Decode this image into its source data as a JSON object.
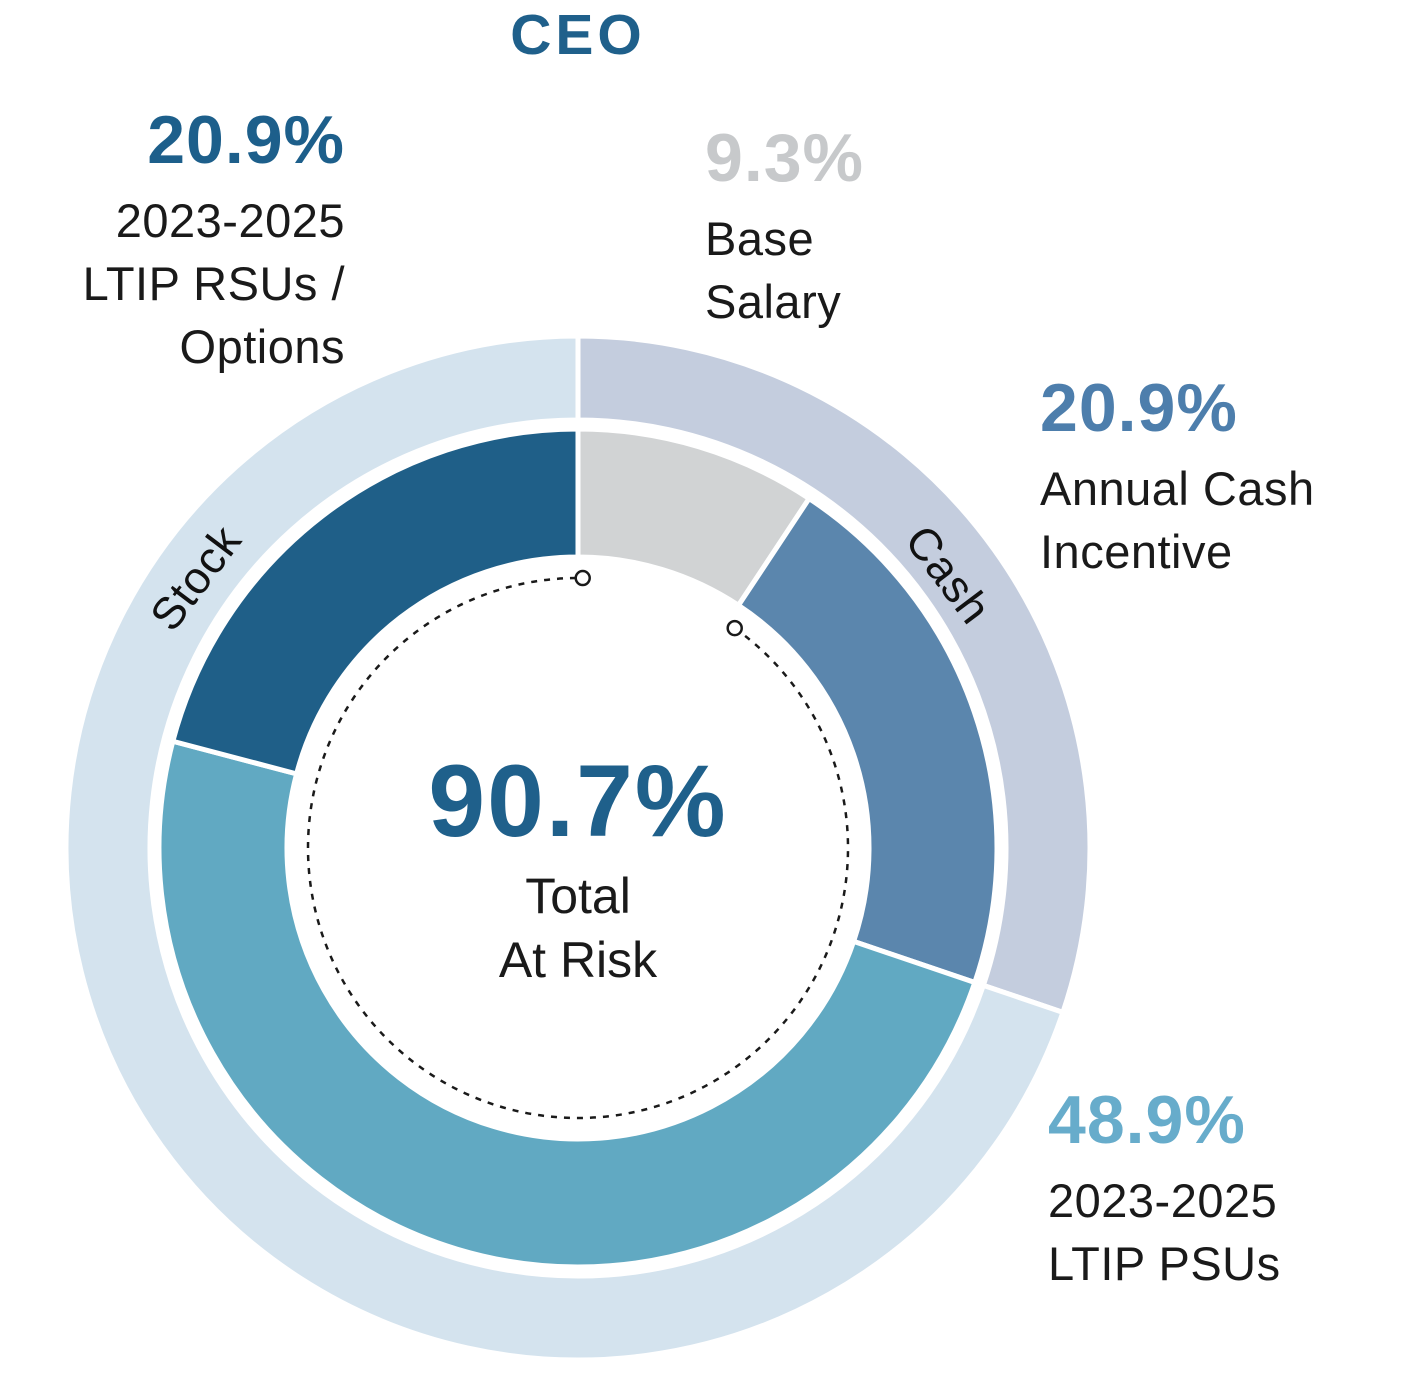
{
  "colors": {
    "primary_blue": "#1f608b",
    "text_black": "#1a1a1a"
  },
  "chart_data": {
    "type": "pie",
    "subtype": "double-ring-donut",
    "title": "CEO",
    "units": "percent",
    "legend_position": "none",
    "inner_ring": [
      {
        "label": "Base Salary",
        "value": 9.3,
        "color": "#d1d3d4"
      },
      {
        "label": "Annual Cash Incentive",
        "value": 20.9,
        "color": "#5b86ad"
      },
      {
        "label": "2023-2025 LTIP PSUs",
        "value": 48.9,
        "color": "#61a9c2"
      },
      {
        "label": "2023-2025 LTIP RSUs / Options",
        "value": 20.9,
        "color": "#1f5f88"
      }
    ],
    "outer_ring": [
      {
        "label": "Cash",
        "value": 30.2,
        "color": "#c4cdde"
      },
      {
        "label": "Stock",
        "value": 69.8,
        "color": "#d4e3ee"
      }
    ],
    "center": {
      "value": "90.7%",
      "label_lines": [
        "Total",
        "At Risk"
      ],
      "at_risk_pct": 90.7
    },
    "start_angle_deg": 0
  },
  "callouts": {
    "rsus_options": {
      "pct": "20.9%",
      "color": "#1d5f8b",
      "lines": [
        "2023-2025",
        "LTIP RSUs /",
        "Options"
      ]
    },
    "base_salary": {
      "pct": "9.3%",
      "color": "#c7c9cb",
      "lines": [
        "Base",
        "Salary"
      ]
    },
    "annual_cash": {
      "pct": "20.9%",
      "color": "#4d7eac",
      "lines": [
        "Annual Cash",
        "Incentive"
      ]
    },
    "ltip_psus": {
      "pct": "48.9%",
      "color": "#67accb",
      "lines": [
        "2023-2025",
        "LTIP PSUs"
      ]
    }
  }
}
